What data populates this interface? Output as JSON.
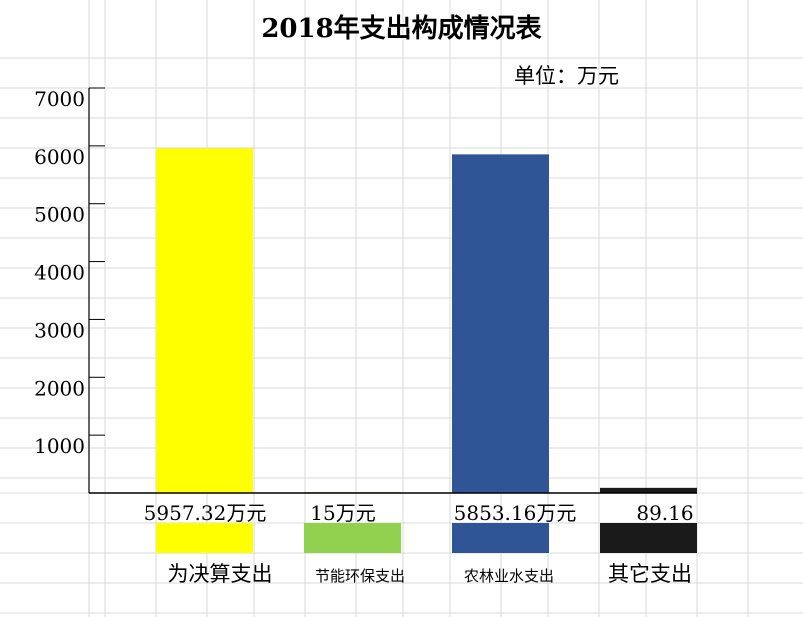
{
  "chart_data": {
    "type": "bar",
    "title": "2018年支出构成情况表",
    "unit_label": "单位：万元",
    "y_ticks": [
      7000,
      6000,
      5000,
      4000,
      3000,
      2000,
      1000
    ],
    "ylim": [
      0,
      7000
    ],
    "grid": true,
    "legend": "none",
    "categories": [
      "为决算支出",
      "节能环保支出",
      "农林业水支出",
      "其它支出"
    ],
    "values": [
      5957.32,
      15,
      5853.16,
      89.16
    ],
    "value_labels": [
      "5957.32万元",
      "15万元",
      "5853.16万元",
      "89.16"
    ],
    "colors": [
      "#ffff00",
      "#92d050",
      "#2f5597",
      "#1a1a1a"
    ]
  }
}
